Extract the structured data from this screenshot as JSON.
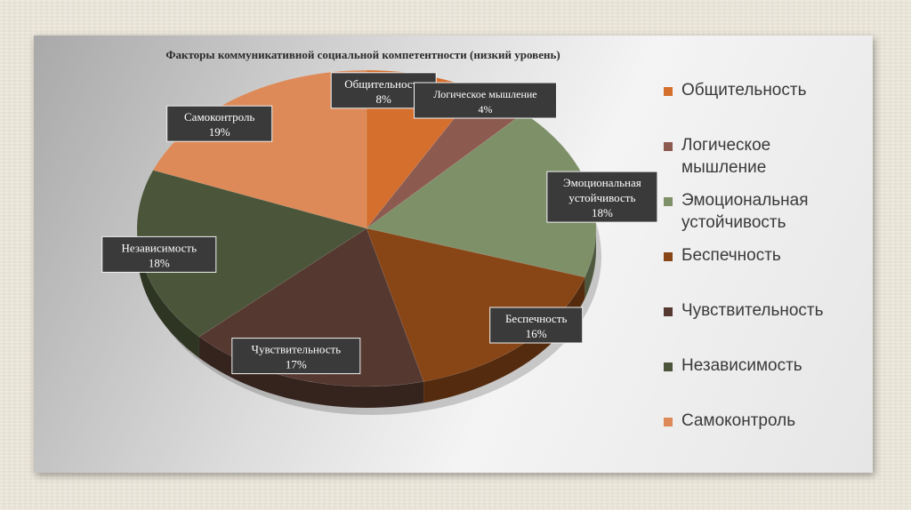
{
  "chart_data": {
    "type": "pie",
    "title": "Факторы коммуникативной социальной компетентности (низкий уровень)",
    "slices": [
      {
        "label": "Общительность",
        "value": 8,
        "value_label": "8%",
        "color": "#d46f2e"
      },
      {
        "label": "Логическое мышление",
        "value": 4,
        "value_label": "4%",
        "color": "#8d5a50"
      },
      {
        "label": "Эмоциональная устойчивость",
        "value": 18,
        "value_label": "18%",
        "color": "#7e9068"
      },
      {
        "label": "Беспечность",
        "value": 16,
        "value_label": "16%",
        "color": "#884516"
      },
      {
        "label": "Чувствительность",
        "value": 17,
        "value_label": "17%",
        "color": "#553830"
      },
      {
        "label": "Независимость",
        "value": 18,
        "value_label": "18%",
        "color": "#4b5539"
      },
      {
        "label": "Самоконтроль",
        "value": 19,
        "value_label": "19%",
        "color": "#dd8a58"
      }
    ],
    "legend": {
      "placement": "right",
      "entries": [
        "Общительность",
        "Логическое мышление",
        "Эмоциональная устойчивость",
        "Беспечность",
        "Чувствительность",
        "Независимость",
        "Самоконтроль"
      ]
    }
  }
}
